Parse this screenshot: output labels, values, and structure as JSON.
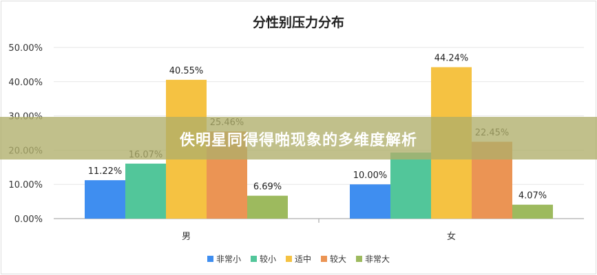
{
  "banner": {
    "text": "佚明星同得得啪现象的多维度解析"
  },
  "chart_data": {
    "type": "bar",
    "title": "分性别压力分布",
    "categories": [
      "男",
      "女"
    ],
    "ylim": [
      0,
      50
    ],
    "yticks": [
      "0.00%",
      "10.00%",
      "20.00%",
      "30.00%",
      "40.00%",
      "50.00%"
    ],
    "grid": true,
    "legend": "bottom",
    "series": [
      {
        "name": "非常小",
        "color": "#3f8ef0",
        "values": [
          11.22,
          10.0
        ],
        "labels": [
          "11.22%",
          "10.00%"
        ]
      },
      {
        "name": "较小",
        "color": "#52c69a",
        "values": [
          16.07,
          19.3
        ],
        "labels": [
          "16.07%",
          ""
        ]
      },
      {
        "name": "适中",
        "color": "#f5c242",
        "values": [
          40.55,
          44.24
        ],
        "labels": [
          "40.55%",
          "44.24%"
        ]
      },
      {
        "name": "较大",
        "color": "#eb9454",
        "values": [
          25.46,
          22.45
        ],
        "labels": [
          "25.46%",
          "22.45%"
        ]
      },
      {
        "name": "非常大",
        "color": "#9dba5e",
        "values": [
          6.69,
          4.07
        ],
        "labels": [
          "6.69%",
          "4.07%"
        ]
      }
    ]
  }
}
